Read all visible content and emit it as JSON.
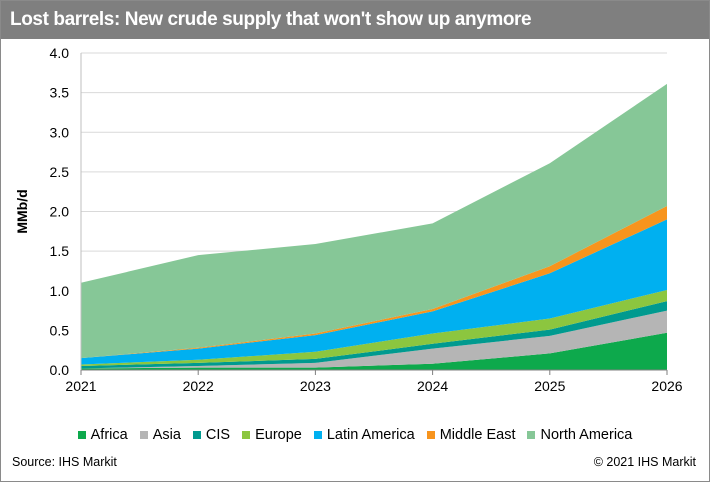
{
  "title": "Lost barrels: New crude supply that won't show up anymore",
  "source": "Source: IHS Markit",
  "copyright": "© 2021 IHS Markit",
  "chart_data": {
    "type": "area",
    "stacked": true,
    "x": [
      "2021",
      "2022",
      "2023",
      "2024",
      "2025",
      "2026"
    ],
    "ylabel": "MMb/d",
    "ylim": [
      0,
      4
    ],
    "yticks": [
      "0.0",
      "0.5",
      "1.0",
      "1.5",
      "2.0",
      "2.5",
      "3.0",
      "3.5",
      "4.0"
    ],
    "grid": true,
    "legend_position": "bottom",
    "series": [
      {
        "name": "Africa",
        "color": "#0da94c",
        "values": [
          0.02,
          0.03,
          0.03,
          0.08,
          0.21,
          0.47
        ]
      },
      {
        "name": "Asia",
        "color": "#b5b5b5",
        "values": [
          0.0,
          0.02,
          0.06,
          0.19,
          0.22,
          0.28
        ]
      },
      {
        "name": "CIS",
        "color": "#009a8f",
        "values": [
          0.03,
          0.04,
          0.05,
          0.06,
          0.08,
          0.12
        ]
      },
      {
        "name": "Europe",
        "color": "#8cc63f",
        "values": [
          0.02,
          0.04,
          0.09,
          0.13,
          0.14,
          0.14
        ]
      },
      {
        "name": "Latin America",
        "color": "#00b0f0",
        "values": [
          0.08,
          0.14,
          0.21,
          0.28,
          0.57,
          0.89
        ]
      },
      {
        "name": "Middle East",
        "color": "#f7941d",
        "values": [
          0.0,
          0.01,
          0.02,
          0.03,
          0.09,
          0.17
        ]
      },
      {
        "name": "North America",
        "color": "#86c797",
        "values": [
          0.95,
          1.17,
          1.13,
          1.08,
          1.3,
          1.54
        ]
      }
    ]
  }
}
